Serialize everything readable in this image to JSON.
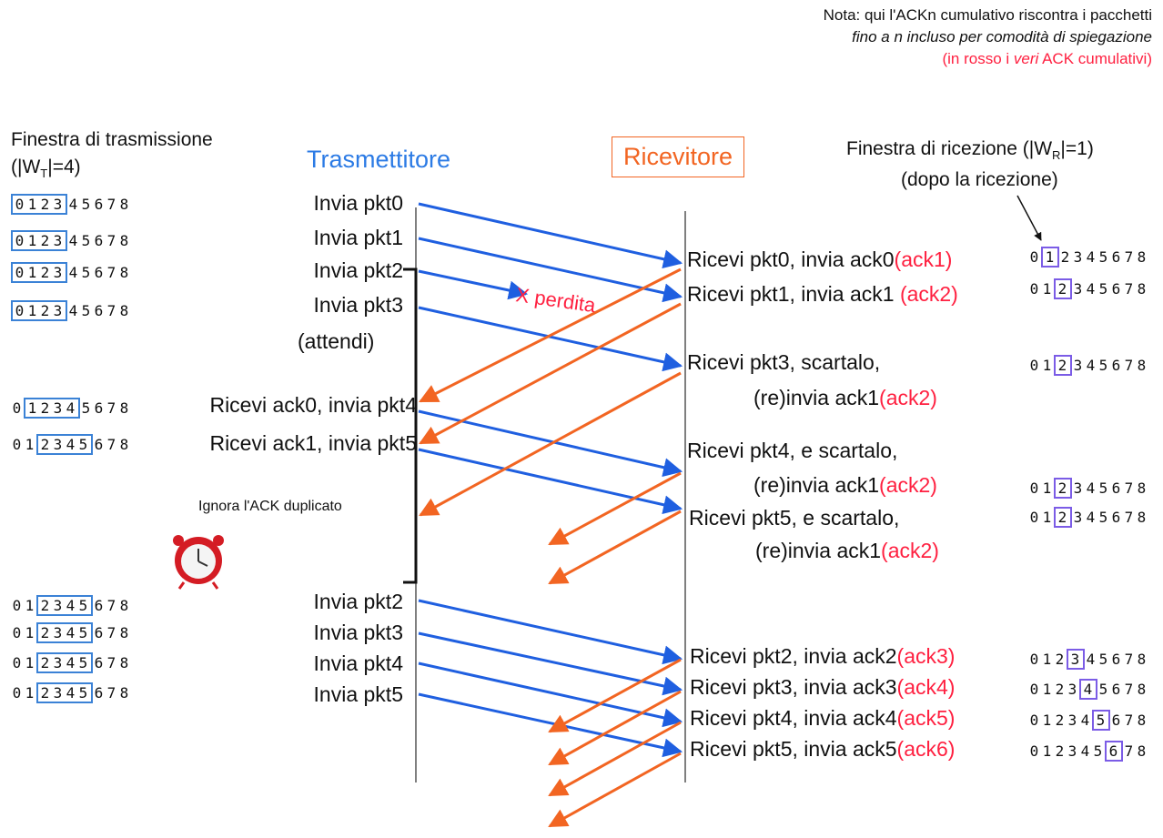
{
  "note": {
    "line1": "Nota: qui l'ACKn cumulativo riscontra i pacchetti",
    "line2": "fino a n incluso per comodità di spiegazione",
    "line3_prefix": "(in rosso i ",
    "line3_italic": "veri",
    "line3_suffix": " ACK cumulativi)"
  },
  "sender_window_label": {
    "line1": "Finestra di trasmissione",
    "line2": "(|W",
    "sub": "T",
    "line2_end": "|=4)"
  },
  "receiver_window_label": {
    "line1a": "Finestra di ricezione (|W",
    "sub": "R",
    "line1b": "|=1)",
    "line2": "(dopo la ricezione)"
  },
  "actors": {
    "sender": "Trasmettitore",
    "receiver": "Ricevitore"
  },
  "sender_events": [
    "Invia pkt0",
    "Invia pkt1",
    "Invia pkt2",
    "Invia pkt3",
    "(attendi)",
    "Ricevi ack0, invia pkt4",
    "Ricevi ack1, invia pkt5",
    "Ignora l'ACK duplicato",
    "Invia pkt2",
    "Invia pkt3",
    "Invia pkt4",
    "Invia pkt5"
  ],
  "receiver_events": [
    {
      "text": "Ricevi pkt0, invia ack0",
      "red": "(ack1)"
    },
    {
      "text": "Ricevi pkt1, invia ack1 ",
      "red": "(ack2)"
    },
    {
      "text": "Ricevi pkt3, scartalo,",
      "red": ""
    },
    {
      "text": "(re)invia ack1",
      "red": "(ack2)"
    },
    {
      "text": "Ricevi pkt4, e scartalo,",
      "red": ""
    },
    {
      "text": "(re)invia ack1",
      "red": "(ack2)"
    },
    {
      "text": "Ricevi pkt5, e scartalo,",
      "red": ""
    },
    {
      "text": "(re)invia ack1",
      "red": "(ack2)"
    },
    {
      "text": "Ricevi pkt2, invia ack2",
      "red": "(ack3)"
    },
    {
      "text": "Ricevi pkt3, invia ack3",
      "red": "(ack4)"
    },
    {
      "text": "Ricevi pkt4, invia ack4",
      "red": "(ack5)"
    },
    {
      "text": "Ricevi pkt5, invia ack5",
      "red": "(ack6)"
    }
  ],
  "loss_label": "X perdita",
  "sequence_digits": [
    "0",
    "1",
    "2",
    "3",
    "4",
    "5",
    "6",
    "7",
    "8"
  ],
  "sender_windows": [
    {
      "start": 0,
      "end": 3
    },
    {
      "start": 0,
      "end": 3
    },
    {
      "start": 0,
      "end": 3
    },
    {
      "start": 0,
      "end": 3
    },
    {
      "start": 1,
      "end": 4
    },
    {
      "start": 2,
      "end": 5
    },
    {
      "start": 2,
      "end": 5
    },
    {
      "start": 2,
      "end": 5
    },
    {
      "start": 2,
      "end": 5
    },
    {
      "start": 2,
      "end": 5
    }
  ],
  "receiver_windows": [
    1,
    2,
    2,
    2,
    2,
    3,
    4,
    5,
    6
  ],
  "colors": {
    "data_arrow": "#1f5fe0",
    "ack_arrow": "#f26522",
    "red_text": "#ff2040",
    "sender_title": "#2c7be5",
    "receiver_title": "#f26522",
    "window_blue": "#3b82d6",
    "window_purple": "#7b5ce6"
  },
  "icons": {
    "timer": "alarm-clock-icon"
  }
}
